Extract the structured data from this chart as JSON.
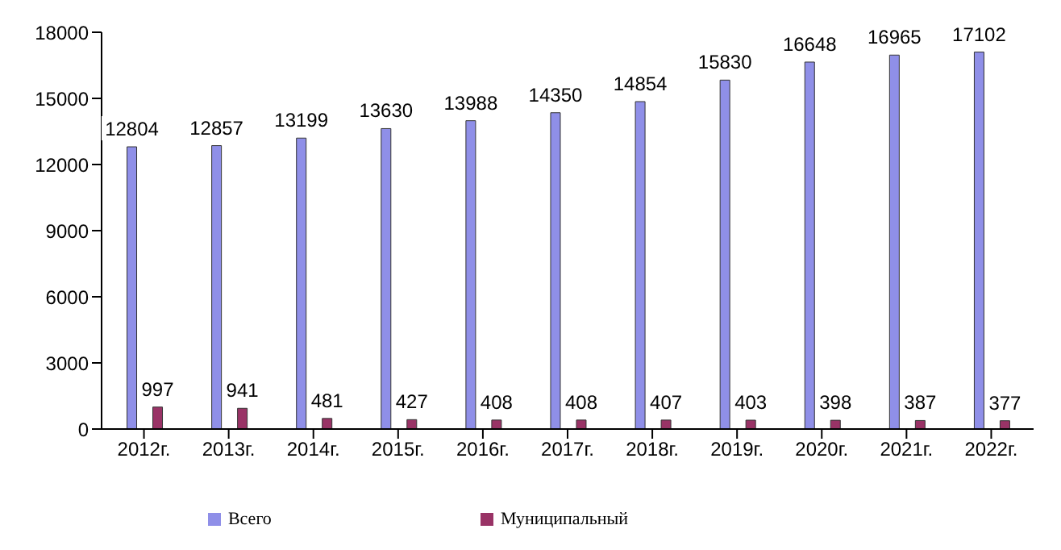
{
  "chart_data": {
    "type": "bar",
    "categories": [
      "2012г.",
      "2013г.",
      "2014г.",
      "2015г.",
      "2016г.",
      "2017г.",
      "2018г.",
      "2019г.",
      "2020г.",
      "2021г.",
      "2022г."
    ],
    "series": [
      {
        "name": "Всего",
        "color": "#8f8fe8",
        "values": [
          12804,
          12857,
          13199,
          13630,
          13988,
          14350,
          14854,
          15830,
          16648,
          16965,
          17102
        ]
      },
      {
        "name": "Муниципальный",
        "color": "#993366",
        "values": [
          997,
          941,
          481,
          427,
          408,
          408,
          407,
          403,
          398,
          387,
          377
        ]
      }
    ],
    "ylim": [
      0,
      18000
    ],
    "yticks": [
      0,
      3000,
      6000,
      9000,
      12000,
      15000,
      18000
    ],
    "grid": false,
    "legend": "bottom",
    "data_labels": true
  }
}
